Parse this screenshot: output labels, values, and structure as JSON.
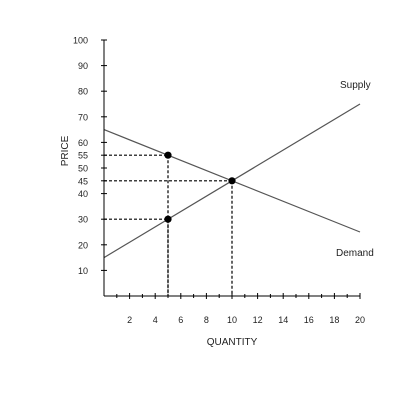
{
  "chart_data": {
    "type": "line",
    "xlabel": "QUANTITY",
    "ylabel": "PRICE",
    "xlim": [
      0,
      20
    ],
    "ylim": [
      0,
      100
    ],
    "x_ticks": [
      2,
      4,
      6,
      8,
      10,
      12,
      14,
      16,
      18,
      20
    ],
    "y_ticks": [
      10,
      20,
      30,
      40,
      45,
      50,
      55,
      60,
      70,
      80,
      90,
      100
    ],
    "grid": false,
    "series": [
      {
        "name": "Supply",
        "x": [
          0,
          20
        ],
        "y": [
          15,
          75
        ]
      },
      {
        "name": "Demand",
        "x": [
          0,
          20
        ],
        "y": [
          65,
          25
        ]
      }
    ],
    "points": [
      {
        "x": 5,
        "y": 55
      },
      {
        "x": 10,
        "y": 45
      },
      {
        "x": 5,
        "y": 30
      }
    ],
    "guides": [
      {
        "x": 5,
        "y": 55
      },
      {
        "x": 5,
        "y": 30
      },
      {
        "x": 10,
        "y": 45
      }
    ],
    "colors": {
      "axis": "#000000",
      "line": "#555555",
      "point": "#000000",
      "text": "#222222"
    }
  }
}
